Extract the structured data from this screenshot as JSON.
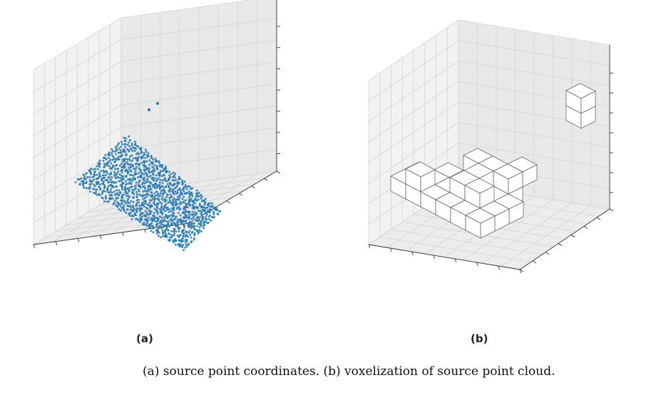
{
  "panels": [
    {
      "label": "(a)"
    },
    {
      "label": "(b)"
    }
  ],
  "caption": "(a) source point coordinates. (b) voxelization of source point cloud.",
  "colors": {
    "points": "#1f77b4",
    "pane": "#f2f2f2",
    "grid": "#d4d4d4",
    "voxel_face": "#ffffff",
    "voxel_edge": "#666666"
  },
  "chart_data": [
    {
      "type": "scatter",
      "projection": "3d",
      "grid": true,
      "tick_labels": false,
      "description_points": "dense sloping surface of source points plus two isolated outliers above",
      "outliers": [
        [
          0.55,
          0.75,
          0.95
        ],
        [
          0.45,
          0.7,
          0.88
        ]
      ]
    },
    {
      "type": "voxel",
      "projection": "3d",
      "grid": true,
      "tick_labels": false,
      "voxels": [
        [
          0,
          0,
          0
        ],
        [
          1,
          0,
          0
        ],
        [
          2,
          0,
          0
        ],
        [
          3,
          0,
          0
        ],
        [
          4,
          0,
          0
        ],
        [
          5,
          0,
          0
        ],
        [
          0,
          1,
          0
        ],
        [
          1,
          1,
          0
        ],
        [
          2,
          1,
          0
        ],
        [
          3,
          1,
          0
        ],
        [
          4,
          1,
          0
        ],
        [
          5,
          1,
          0
        ],
        [
          1,
          2,
          0
        ],
        [
          2,
          2,
          0
        ],
        [
          3,
          2,
          0
        ],
        [
          4,
          2,
          0
        ],
        [
          5,
          2,
          0
        ],
        [
          2,
          3,
          0
        ],
        [
          3,
          3,
          0
        ],
        [
          4,
          3,
          0
        ],
        [
          3,
          1,
          1
        ],
        [
          4,
          1,
          1
        ],
        [
          3,
          2,
          1
        ],
        [
          1,
          0,
          1
        ],
        [
          2,
          3,
          1
        ],
        [
          3,
          3,
          1
        ],
        [
          4,
          4,
          1
        ],
        [
          4,
          3,
          1
        ],
        [
          6,
          6,
          5
        ],
        [
          6,
          6,
          6
        ]
      ]
    }
  ]
}
